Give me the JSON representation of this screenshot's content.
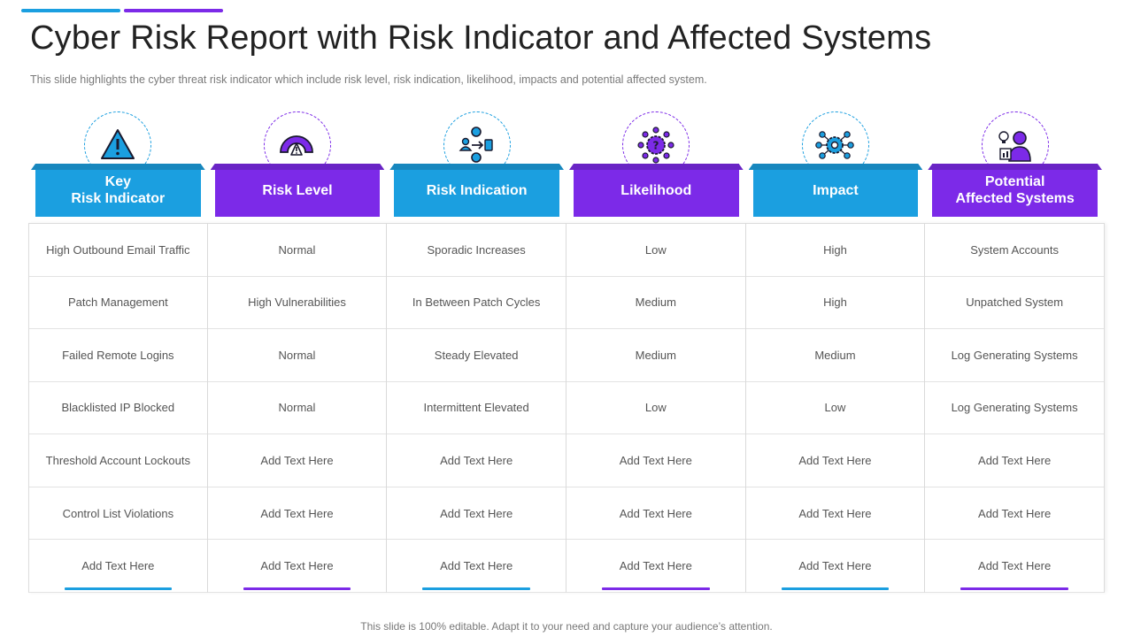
{
  "title": "Cyber Risk Report with Risk Indicator and Affected Systems",
  "subtitle": "This slide highlights the cyber threat risk indicator which include risk level,  risk indication, likelihood, impacts and potential affected system.",
  "footer": "This slide is 100% editable. Adapt it to your need and capture your audience’s attention.",
  "colors": {
    "blue": "#1b9fe0",
    "purple": "#7c2ae8"
  },
  "columns": [
    {
      "header": "Key\nRisk Indicator",
      "icon": "warning-triangle-icon",
      "color": "#1b9fe0",
      "cells": [
        "High Outbound Email Traffic",
        "Patch Management",
        "Failed Remote Logins",
        "Blacklisted IP Blocked",
        "Threshold  Account Lockouts",
        "Control List Violations",
        "Add Text Here"
      ]
    },
    {
      "header": "Risk Level",
      "icon": "risk-gauge-icon",
      "color": "#7c2ae8",
      "cells": [
        "Normal",
        "High Vulnerabilities",
        "Normal",
        "Normal",
        "Add Text Here",
        "Add Text Here",
        "Add Text Here"
      ]
    },
    {
      "header": "Risk Indication",
      "icon": "network-flow-icon",
      "color": "#1b9fe0",
      "cells": [
        "Sporadic Increases",
        "In Between Patch Cycles",
        "Steady Elevated",
        "Intermittent Elevated",
        "Add Text Here",
        "Add Text Here",
        "Add Text Here"
      ]
    },
    {
      "header": "Likelihood",
      "icon": "question-gear-icon",
      "color": "#7c2ae8",
      "cells": [
        "Low",
        "Medium",
        "Medium",
        "Low",
        "Add Text Here",
        "Add Text Here",
        "Add Text Here"
      ]
    },
    {
      "header": "Impact",
      "icon": "gear-network-icon",
      "color": "#1b9fe0",
      "cells": [
        "High",
        "High",
        "Medium",
        "Low",
        "Add Text Here",
        "Add Text Here",
        "Add Text Here"
      ]
    },
    {
      "header": "Potential\nAffected Systems",
      "icon": "user-idea-icon",
      "color": "#7c2ae8",
      "cells": [
        "System Accounts",
        "Unpatched System",
        "Log Generating Systems",
        "Log Generating Systems",
        "Add Text Here",
        "Add Text Here",
        "Add Text Here"
      ]
    }
  ]
}
